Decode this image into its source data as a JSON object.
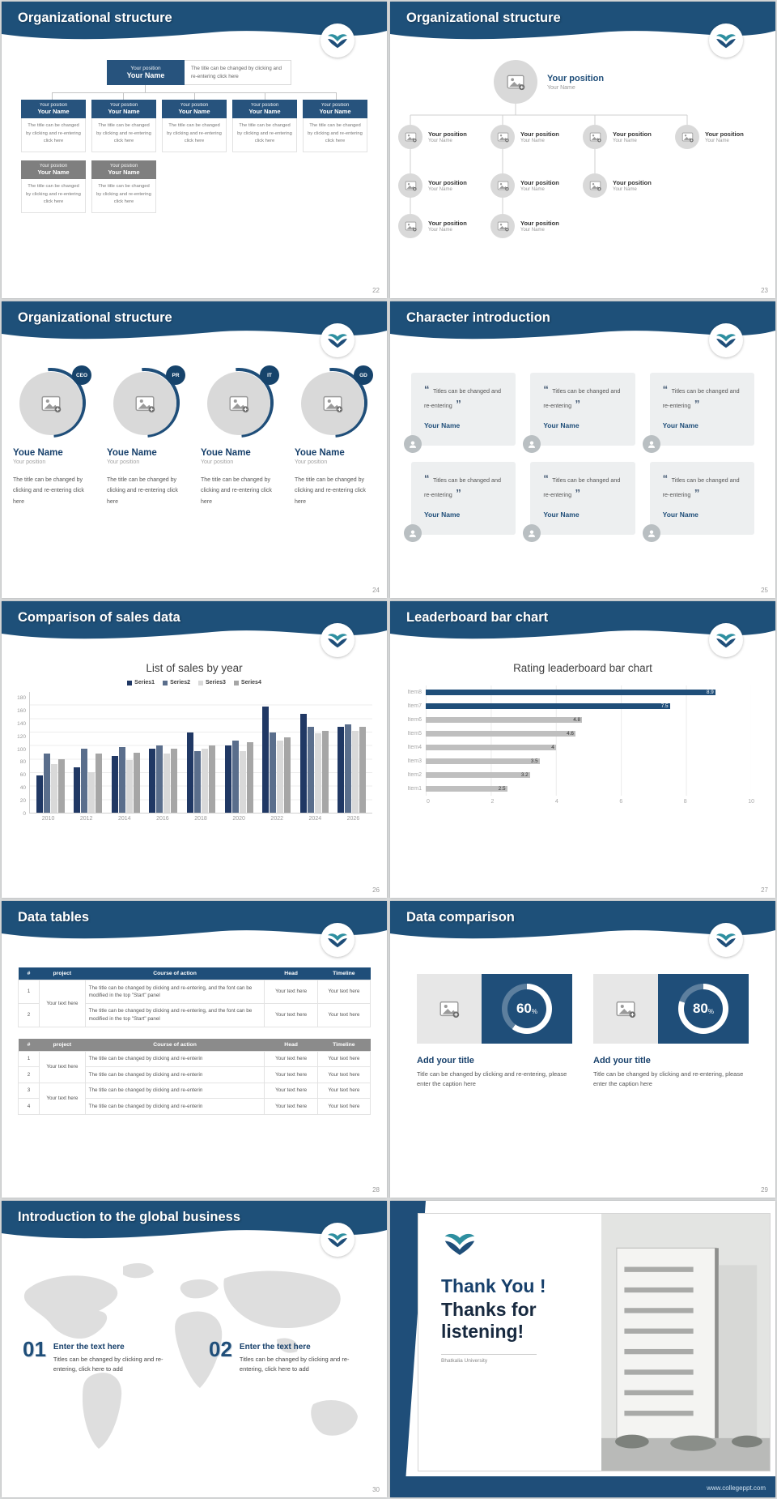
{
  "footer": {
    "url": "www.collegeppt.com"
  },
  "icons": {
    "quote_open": "“",
    "quote_close": "”",
    "percent_sign": "%"
  },
  "slides": {
    "s22": {
      "title": "Organizational structure",
      "page": "22",
      "node": {
        "position": "Your position",
        "name": "Your Name"
      },
      "caption": "The title can be changed by clicking and re-entering click here"
    },
    "s23": {
      "title": "Organizational structure",
      "page": "23",
      "node": {
        "position": "Your position",
        "name": "Your Name"
      }
    },
    "s24": {
      "title": "Organizational structure",
      "page": "24",
      "badges": [
        "CEO",
        "PR",
        "IT",
        "GD"
      ],
      "name": "Youe Name",
      "position": "Your position",
      "caption": "The title can be changed by clicking and re-entering click here"
    },
    "s25": {
      "title": "Character introduction",
      "page": "25",
      "card": {
        "text": "Titles can be changed and re-entering",
        "name": "Your Name"
      }
    },
    "s26": {
      "title": "Comparison of sales data",
      "page": "26",
      "chart_title": "List of sales by year"
    },
    "s27": {
      "title": "Leaderboard bar chart",
      "page": "27",
      "chart_title": "Rating leaderboard bar chart"
    },
    "s28": {
      "title": "Data tables",
      "page": "28",
      "table1": {
        "headers": [
          "#",
          "project",
          "Course of action",
          "Head",
          "Timeline"
        ],
        "project": "Your text here",
        "rows": [
          {
            "num": "1",
            "course": "The title can be changed by clicking and re-entering, and the font can be modified in the top \"Start\" panel",
            "head": "Your text here",
            "timeline": "Your text here"
          },
          {
            "num": "2",
            "course": "The title can be changed by clicking and re-entering, and the font can be modified in the top \"Start\" panel",
            "head": "Your text here",
            "timeline": "Your text here"
          }
        ]
      },
      "table2": {
        "headers": [
          "#",
          "project",
          "Course of action",
          "Head",
          "Timeline"
        ],
        "nums": [
          "1",
          "2",
          "3",
          "4"
        ],
        "project": "Your text here",
        "course": "The title can be changed by clicking and re-enterin",
        "head": "Your text here",
        "timeline": "Your text here"
      }
    },
    "s29": {
      "title": "Data comparison",
      "page": "29",
      "percent_sign": "%",
      "cards": [
        {
          "percent": 60,
          "heading": "Add your title",
          "caption": "Title can be changed by clicking and re-entering, please enter the caption here"
        },
        {
          "percent": 80,
          "heading": "Add your title",
          "caption": "Title can be changed by clicking and re-entering, please enter the caption here"
        }
      ]
    },
    "s30": {
      "title": "Introduction to the global business",
      "page": "30",
      "items": [
        {
          "num": "01",
          "heading": "Enter the text here",
          "caption": "Titles can be changed by clicking and re-entering, click here to add"
        },
        {
          "num": "02",
          "heading": "Enter the text here",
          "caption": "Titles can be changed by clicking and re-entering, click here to add"
        }
      ]
    },
    "s31": {
      "thank_you": "Thank You !",
      "thanks": "Thanks for listening!",
      "university": "Bhatkalia University"
    }
  },
  "chart_data": [
    {
      "type": "bar",
      "title": "List of sales by year",
      "categories": [
        "2010",
        "2012",
        "2014",
        "2016",
        "2018",
        "2020",
        "2022",
        "2024",
        "2026"
      ],
      "series": [
        {
          "name": "Series1",
          "color": "#203864",
          "values": [
            55,
            68,
            85,
            95,
            120,
            100,
            158,
            148,
            128
          ]
        },
        {
          "name": "Series2",
          "color": "#5a6e8c",
          "values": [
            88,
            95,
            98,
            100,
            92,
            108,
            120,
            128,
            132
          ]
        },
        {
          "name": "Series3",
          "color": "#d9d9d9",
          "values": [
            72,
            60,
            78,
            88,
            95,
            92,
            108,
            118,
            122
          ]
        },
        {
          "name": "Series4",
          "color": "#a6a6a6",
          "values": [
            80,
            88,
            90,
            95,
            100,
            105,
            112,
            122,
            128
          ]
        }
      ],
      "xlabel": "",
      "ylabel": "",
      "ylim": [
        0,
        180
      ],
      "yticks": [
        0,
        20,
        40,
        60,
        80,
        100,
        120,
        140,
        160,
        180
      ],
      "legend_position": "top",
      "grid": true
    },
    {
      "type": "bar",
      "orientation": "horizontal",
      "title": "Rating leaderboard bar chart",
      "categories": [
        "Item1",
        "Item2",
        "Item3",
        "Item4",
        "Item5",
        "Item6",
        "Item7",
        "Item8"
      ],
      "values": [
        2.5,
        3.2,
        3.5,
        4,
        4.6,
        4.8,
        7.5,
        8.9
      ],
      "bar_colors": [
        "#bfbfbf",
        "#bfbfbf",
        "#bfbfbf",
        "#bfbfbf",
        "#bfbfbf",
        "#bfbfbf",
        "#1f4e79",
        "#1f4e79"
      ],
      "xlim": [
        0,
        10
      ],
      "xticks": [
        0,
        2,
        4,
        6,
        8,
        10
      ],
      "grid": true
    }
  ]
}
